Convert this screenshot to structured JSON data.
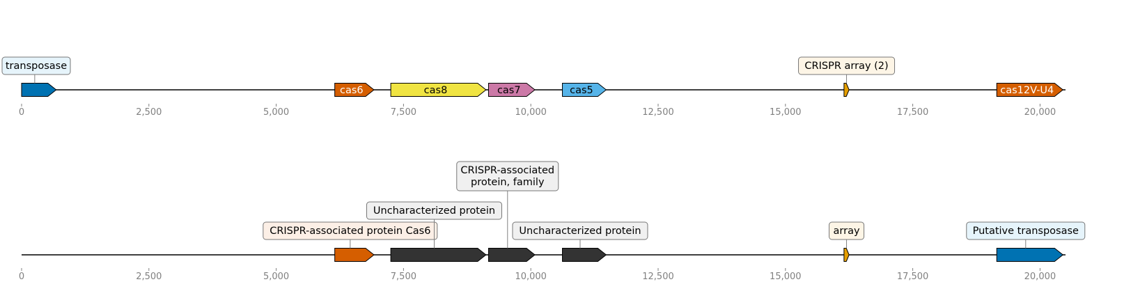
{
  "tracks": [
    {
      "features": [
        {
          "name": "transposase",
          "start": 0,
          "end": 680,
          "color": "#0072b2",
          "label_mode": "box",
          "label_bg": "#e6f4fb",
          "label_text_color": "#000000"
        },
        {
          "name": "cas6",
          "start": 6150,
          "end": 6920,
          "color": "#d55e00",
          "label_mode": "inline",
          "label_text_color": "#ffffff"
        },
        {
          "name": "cas8",
          "start": 7250,
          "end": 9120,
          "color": "#f0e442",
          "label_mode": "inline",
          "label_text_color": "#000000"
        },
        {
          "name": "cas7",
          "start": 9170,
          "end": 10080,
          "color": "#cc79a7",
          "label_mode": "inline",
          "label_text_color": "#000000"
        },
        {
          "name": "cas5",
          "start": 10620,
          "end": 11480,
          "color": "#56b4e9",
          "label_mode": "inline",
          "label_text_color": "#000000"
        },
        {
          "name": "CRISPR array (2)",
          "start": 16150,
          "end": 16250,
          "color": "#e69f00",
          "label_mode": "box",
          "label_bg": "#fdf5e6",
          "label_text_color": "#000000"
        },
        {
          "name": "cas12V-U4",
          "start": 19150,
          "end": 20450,
          "color": "#d55e00",
          "label_mode": "inline",
          "label_text_color": "#ffffff"
        }
      ]
    },
    {
      "features": [
        {
          "name": "CRISPR-associated protein Cas6",
          "start": 6150,
          "end": 6920,
          "color": "#d55e00",
          "label_mode": "box",
          "label_bg": "#fcefe6",
          "label_text_color": "#000000",
          "label_level": 1
        },
        {
          "name": "Uncharacterized protein",
          "start": 7250,
          "end": 9120,
          "color": "#333333",
          "label_mode": "box",
          "label_bg": "#f0f0f0",
          "label_text_color": "#000000",
          "label_level": 2
        },
        {
          "name": "CRISPR-associated\nprotein, family",
          "start": 9170,
          "end": 10080,
          "color": "#333333",
          "label_mode": "box",
          "label_bg": "#f0f0f0",
          "label_text_color": "#000000",
          "label_level": 3
        },
        {
          "name": "Uncharacterized protein",
          "start": 10620,
          "end": 11480,
          "color": "#333333",
          "label_mode": "box",
          "label_bg": "#f0f0f0",
          "label_text_color": "#000000",
          "label_level": 1
        },
        {
          "name": "array",
          "start": 16150,
          "end": 16250,
          "color": "#e69f00",
          "label_mode": "box",
          "label_bg": "#fdf5e6",
          "label_text_color": "#000000",
          "label_level": 1
        },
        {
          "name": "Putative transposase",
          "start": 19150,
          "end": 20450,
          "color": "#0072b2",
          "label_mode": "box",
          "label_bg": "#e6f4fb",
          "label_text_color": "#000000",
          "label_level": 1
        }
      ]
    }
  ],
  "axis": {
    "range": [
      0,
      20500
    ],
    "ticks": [
      0,
      2500,
      5000,
      7500,
      10000,
      12500,
      15000,
      17500,
      20000
    ],
    "tick_labels": [
      "0",
      "2,500",
      "5,000",
      "7,500",
      "10,000",
      "12,500",
      "15,000",
      "17,500",
      "20,000"
    ]
  }
}
